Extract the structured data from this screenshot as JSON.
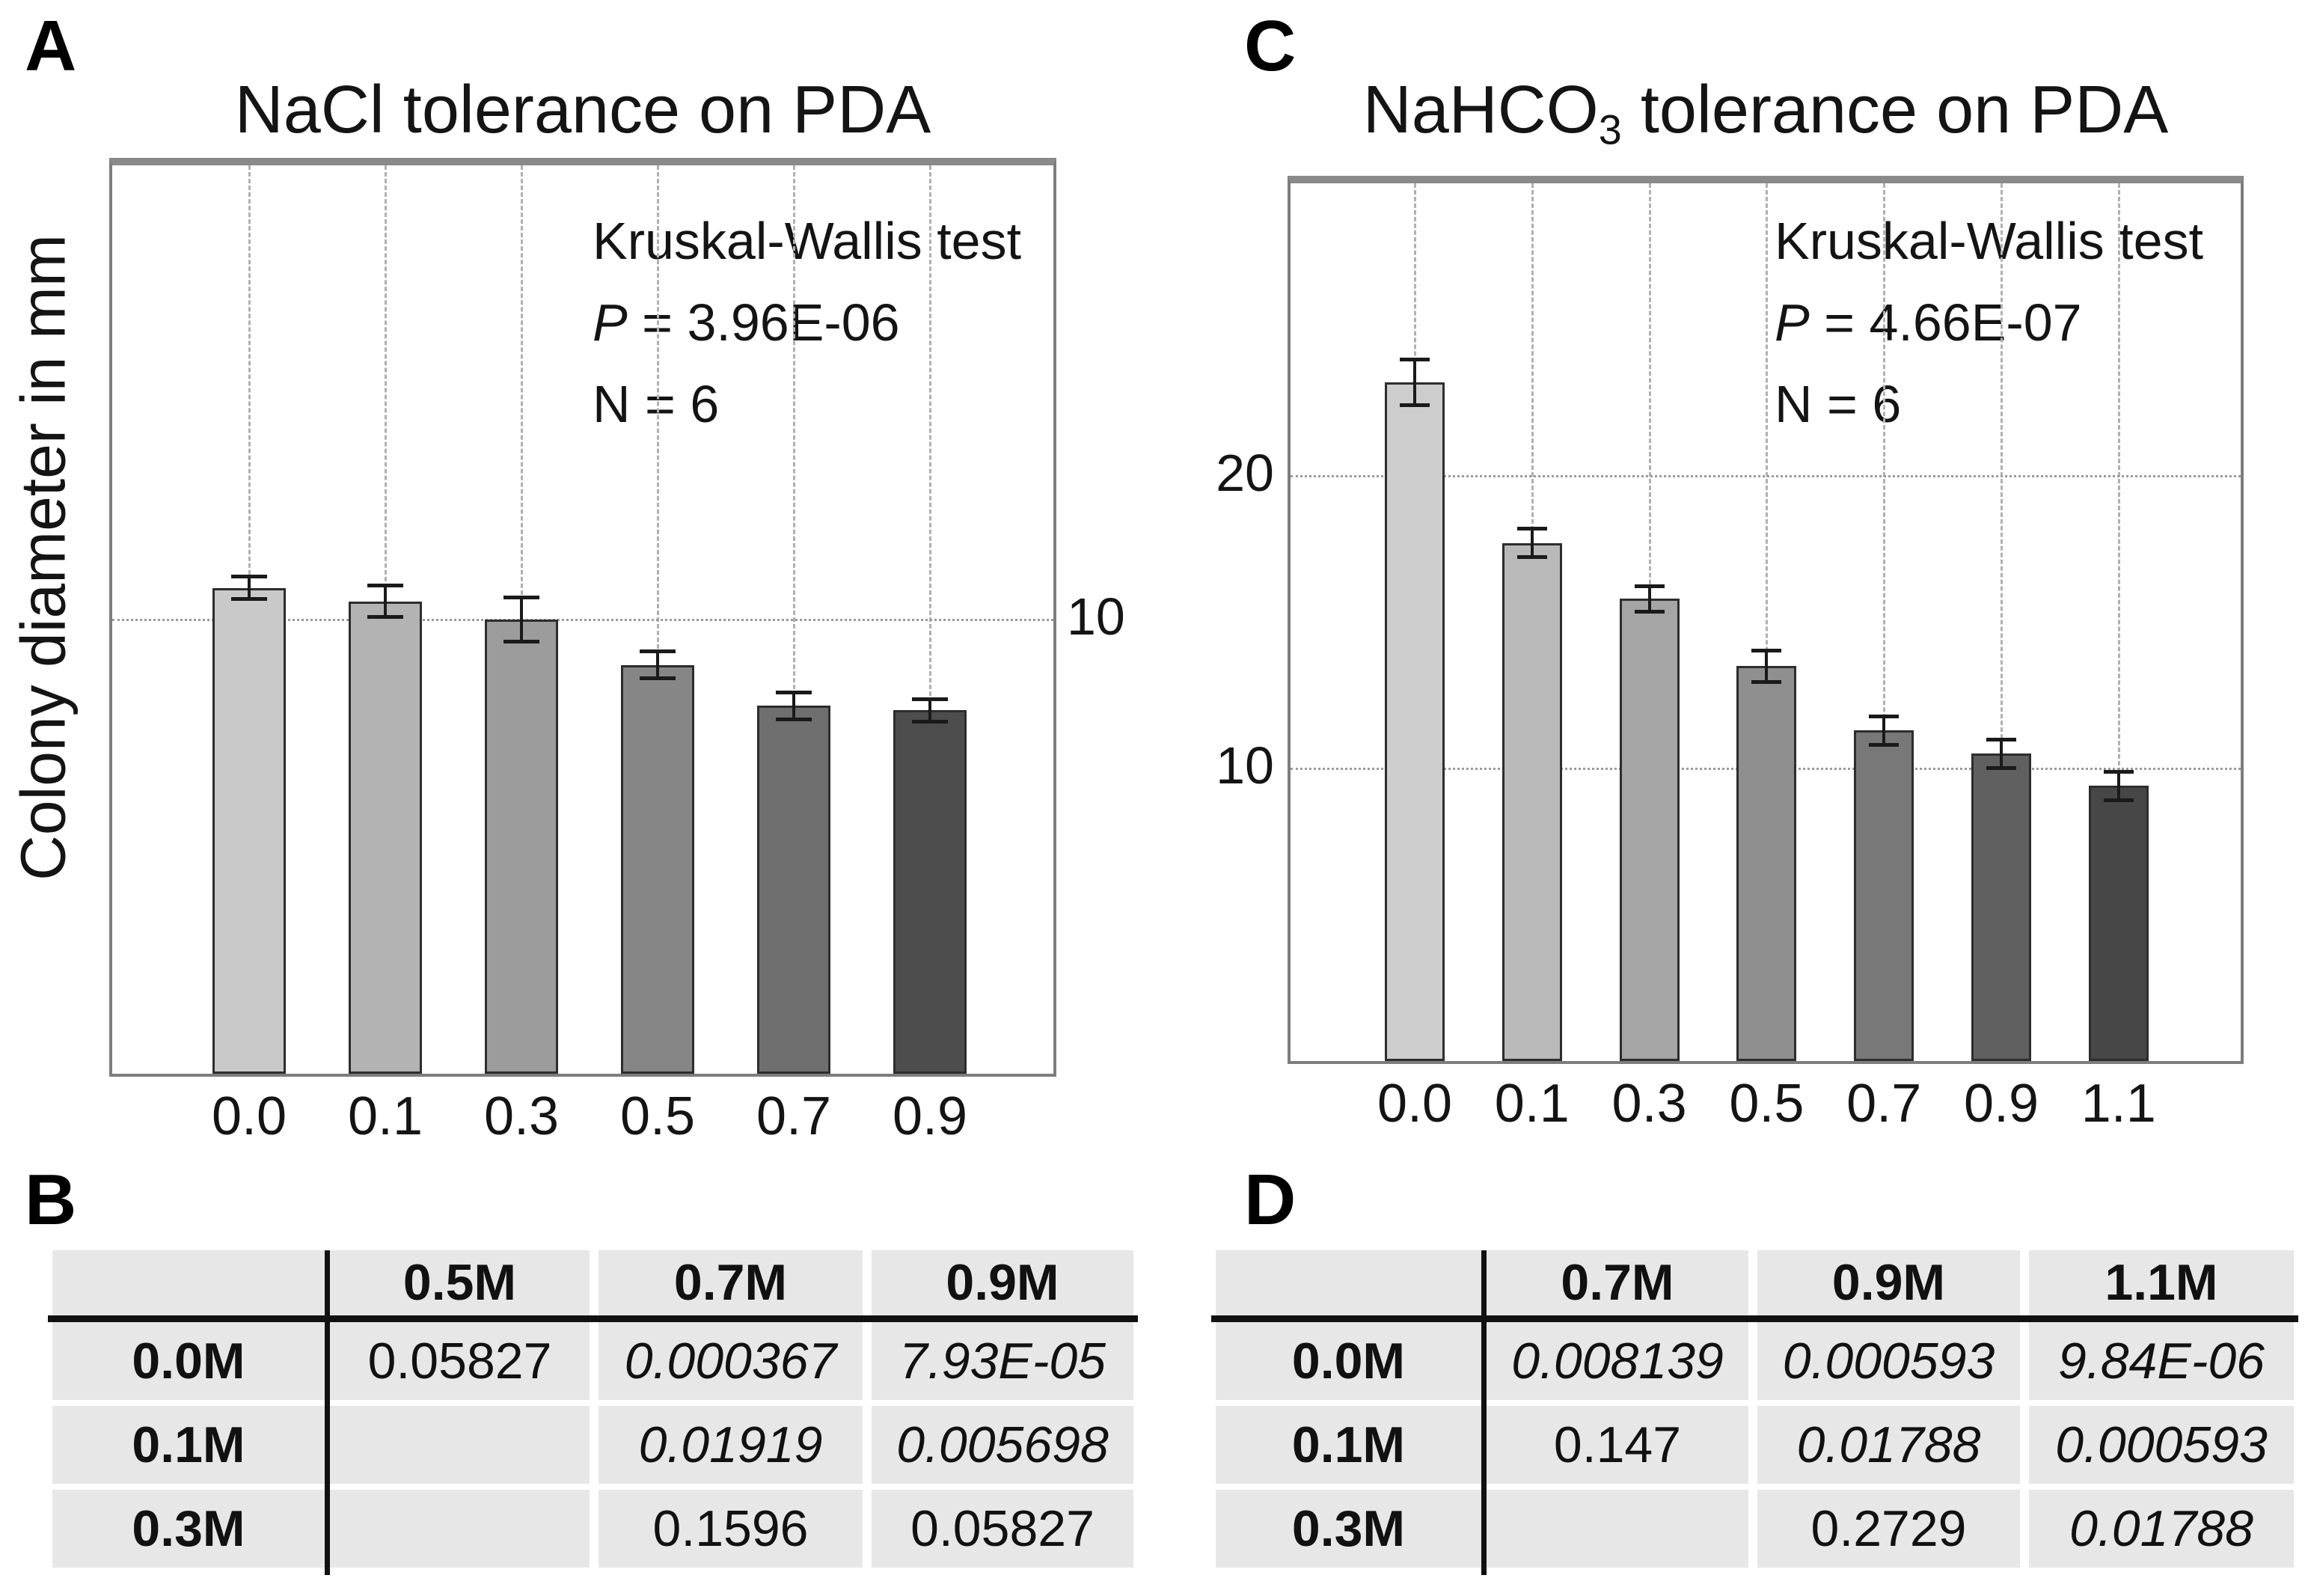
{
  "panels": {
    "a": {
      "letter": "A"
    },
    "b": {
      "letter": "B"
    },
    "c": {
      "letter": "C"
    },
    "d": {
      "letter": "D"
    }
  },
  "palette": {
    "grid_dash": "#b0b0b0",
    "grid_dot": "#9b9b9b",
    "box_border": "#7d7d7d",
    "bar_border": "#2d2d2d",
    "error_bar": "#1a1a1a",
    "table_cell_bg": "#e7e7e7",
    "table_line": "#111111"
  },
  "chart_data": [
    {
      "id": "chart-a",
      "type": "bar",
      "title": "NaCl tolerance on PDA",
      "ylabel": "Colony diameter in mm",
      "categories": [
        "0.0",
        "0.1",
        "0.3",
        "0.5",
        "0.7",
        "0.9"
      ],
      "values": [
        10.7,
        10.4,
        10.0,
        9.0,
        8.1,
        8.0
      ],
      "errors": [
        0.25,
        0.35,
        0.5,
        0.3,
        0.3,
        0.25
      ],
      "bar_colors": [
        "#c9c9c9",
        "#b3b3b3",
        "#9c9c9c",
        "#868686",
        "#6f6f6f",
        "#4d4d4d"
      ],
      "ylim": [
        0,
        20
      ],
      "gridlines_y": [
        10
      ],
      "yticks": [
        {
          "value": 10,
          "label": "10"
        }
      ],
      "ytick_side": "right",
      "grid_vertical": true,
      "legend": "none",
      "annotation": {
        "line1": "Kruskal-Wallis test",
        "p_label": "P",
        "p_value": " = 3.96E-06",
        "n_line": "N = 6"
      }
    },
    {
      "id": "chart-c",
      "type": "bar",
      "title_pre": "NaHCO",
      "title_sub": "3",
      "title_post": " tolerance on PDA",
      "categories": [
        "0.0",
        "0.1",
        "0.3",
        "0.5",
        "0.7",
        "0.9",
        "1.1"
      ],
      "values": [
        23.2,
        17.7,
        15.8,
        13.5,
        11.3,
        10.5,
        9.4
      ],
      "errors": [
        0.8,
        0.5,
        0.45,
        0.55,
        0.5,
        0.5,
        0.5
      ],
      "bar_colors": [
        "#cdcdcd",
        "#b9b9b9",
        "#a5a5a5",
        "#8f8f8f",
        "#787878",
        "#606060",
        "#474747"
      ],
      "ylim": [
        0,
        30
      ],
      "gridlines_y": [
        10,
        20
      ],
      "yticks": [
        {
          "value": 10,
          "label": "10"
        },
        {
          "value": 20,
          "label": "20"
        }
      ],
      "ytick_side": "left",
      "grid_vertical": true,
      "legend": "none",
      "annotation": {
        "line1": "Kruskal-Wallis test",
        "p_label": "P",
        "p_value": " = 4.66E-07",
        "n_line": "N = 6"
      }
    }
  ],
  "tables": [
    {
      "id": "table-b",
      "headers": [
        "",
        "0.5M",
        "0.7M",
        "0.9M"
      ],
      "rows": [
        {
          "label": "0.0M",
          "cells": [
            {
              "t": "0.05827",
              "i": false
            },
            {
              "t": "0.000367",
              "i": true
            },
            {
              "t": "7.93E-05",
              "i": true
            }
          ]
        },
        {
          "label": "0.1M",
          "cells": [
            {
              "t": "",
              "i": false
            },
            {
              "t": "0.01919",
              "i": true
            },
            {
              "t": "0.005698",
              "i": true
            }
          ]
        },
        {
          "label": "0.3M",
          "cells": [
            {
              "t": "",
              "i": false
            },
            {
              "t": "0.1596",
              "i": false
            },
            {
              "t": "0.05827",
              "i": false
            }
          ]
        }
      ]
    },
    {
      "id": "table-d",
      "headers": [
        "",
        "0.7M",
        "0.9M",
        "1.1M"
      ],
      "rows": [
        {
          "label": "0.0M",
          "cells": [
            {
              "t": "0.008139",
              "i": true
            },
            {
              "t": "0.000593",
              "i": true
            },
            {
              "t": "9.84E-06",
              "i": true
            }
          ]
        },
        {
          "label": "0.1M",
          "cells": [
            {
              "t": "0.147",
              "i": false
            },
            {
              "t": "0.01788",
              "i": true
            },
            {
              "t": "0.000593",
              "i": true
            }
          ]
        },
        {
          "label": "0.3M",
          "cells": [
            {
              "t": "",
              "i": false
            },
            {
              "t": "0.2729",
              "i": false
            },
            {
              "t": "0.01788",
              "i": true
            }
          ]
        }
      ]
    }
  ]
}
